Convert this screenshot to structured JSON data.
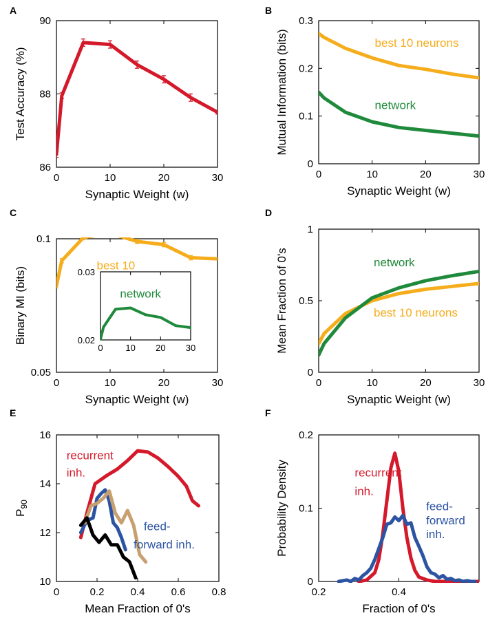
{
  "chart_data": [
    {
      "panel": "A",
      "type": "line",
      "xlabel": "Synaptic Weight (w)",
      "ylabel": "Test Accuracy (%)",
      "xlim": [
        0,
        30
      ],
      "ylim": [
        86,
        90
      ],
      "xticks": [
        0,
        10,
        20,
        30
      ],
      "yticks": [
        86,
        88,
        90
      ],
      "series": [
        {
          "name": "test accuracy",
          "color": "#d4192b",
          "x": [
            0,
            1,
            5,
            10,
            15,
            20,
            25,
            30
          ],
          "y": [
            86.35,
            87.95,
            89.4,
            89.35,
            88.8,
            88.4,
            87.9,
            87.5
          ],
          "err": [
            0.08,
            0.08,
            0.1,
            0.1,
            0.1,
            0.1,
            0.1,
            0.05
          ]
        }
      ],
      "annotations": []
    },
    {
      "panel": "B",
      "type": "line",
      "xlabel": "Synaptic Weight (w)",
      "ylabel": "Mutual Information (bits)",
      "xlim": [
        0,
        30
      ],
      "ylim": [
        0,
        0.3
      ],
      "xticks": [
        0,
        10,
        20,
        30
      ],
      "yticks": [
        0,
        0.1,
        0.2,
        0.3
      ],
      "series": [
        {
          "name": "best 10 neurons",
          "color": "#f5ad1c",
          "x": [
            0,
            1,
            5,
            10,
            15,
            20,
            25,
            30
          ],
          "y": [
            0.273,
            0.265,
            0.242,
            0.222,
            0.206,
            0.198,
            0.188,
            0.18
          ]
        },
        {
          "name": "network",
          "color": "#1f8a3b",
          "x": [
            0,
            1,
            5,
            10,
            15,
            20,
            25,
            30
          ],
          "y": [
            0.15,
            0.138,
            0.108,
            0.088,
            0.076,
            0.07,
            0.064,
            0.058
          ]
        }
      ],
      "annotations": [
        {
          "text": "best 10 neurons",
          "color": "#f5ad1c",
          "x": 10.5,
          "y": 0.245
        },
        {
          "text": "network",
          "color": "#1f8a3b",
          "x": 10.5,
          "y": 0.115
        }
      ]
    },
    {
      "panel": "C",
      "type": "line",
      "xlabel": "Synaptic Weight (w)",
      "ylabel": "Binary MI (bits)",
      "xlim": [
        0,
        30
      ],
      "ylim": [
        0.05,
        0.1
      ],
      "xticks": [
        0,
        10,
        20,
        30
      ],
      "yticks": [
        0.05,
        0.1
      ],
      "series": [
        {
          "name": "best 10",
          "color": "#f5ad1c",
          "x": [
            0,
            1,
            5,
            10,
            15,
            20,
            25,
            30
          ],
          "y": [
            0.0824,
            0.0918,
            0.1004,
            0.1021,
            0.099,
            0.0978,
            0.0929,
            0.0925
          ],
          "err": [
            0.0008,
            0.0008,
            0.0008,
            0.0008,
            0.0008,
            0.0008,
            0.0008,
            0.0
          ]
        }
      ],
      "annotations": [
        {
          "text": "best 10",
          "color": "#f5ad1c",
          "x": 7.5,
          "y": 0.0885
        }
      ],
      "inset": {
        "type": "line",
        "xlim": [
          0,
          30
        ],
        "ylim": [
          0.02,
          0.03
        ],
        "xticks": [
          0,
          10,
          20,
          30
        ],
        "yticks": [
          0.02,
          0.03
        ],
        "series": [
          {
            "name": "network",
            "color": "#1f8a3b",
            "x": [
              0,
              1,
              5,
              10,
              15,
              20,
              25,
              30
            ],
            "y": [
              0.0201,
              0.0219,
              0.0245,
              0.0247,
              0.0237,
              0.0233,
              0.0221,
              0.0218
            ]
          }
        ],
        "annotations": [
          {
            "text": "network",
            "color": "#1f8a3b",
            "x": 6.5,
            "y": 0.0262
          }
        ]
      }
    },
    {
      "panel": "D",
      "type": "line",
      "xlabel": "Synaptic Weight (w)",
      "ylabel": "Mean Fraction of 0's",
      "xlim": [
        0,
        30
      ],
      "ylim": [
        0,
        1
      ],
      "xticks": [
        0,
        10,
        20,
        30
      ],
      "yticks": [
        0,
        0.5,
        1
      ],
      "series": [
        {
          "name": "best 10 neurons",
          "color": "#f5ad1c",
          "x": [
            0,
            1,
            5,
            10,
            15,
            20,
            25,
            30
          ],
          "y": [
            0.2,
            0.27,
            0.41,
            0.5,
            0.55,
            0.58,
            0.6,
            0.62
          ]
        },
        {
          "name": "network",
          "color": "#1f8a3b",
          "x": [
            0,
            1,
            5,
            10,
            15,
            20,
            25,
            30
          ],
          "y": [
            0.12,
            0.2,
            0.38,
            0.52,
            0.59,
            0.64,
            0.675,
            0.705
          ]
        }
      ],
      "annotations": [
        {
          "text": "network",
          "color": "#1f8a3b",
          "x": 10.3,
          "y": 0.74
        },
        {
          "text": "best 10 neurons",
          "color": "#f5ad1c",
          "x": 10.3,
          "y": 0.39
        }
      ]
    },
    {
      "panel": "E",
      "type": "line",
      "xlabel": "Mean Fraction of 0's",
      "ylabel": "P90",
      "xlim": [
        0,
        0.8
      ],
      "ylim": [
        10,
        16
      ],
      "xticks": [
        0,
        0.2,
        0.4,
        0.6,
        0.8
      ],
      "yticks": [
        10,
        12,
        14,
        16
      ],
      "series": [
        {
          "name": "recurrent inh.",
          "color": "#d4192b",
          "x": [
            0.12,
            0.15,
            0.19,
            0.25,
            0.3,
            0.35,
            0.4,
            0.45,
            0.5,
            0.55,
            0.6,
            0.64,
            0.67,
            0.7
          ],
          "y": [
            11.8,
            12.8,
            14.0,
            14.35,
            14.6,
            14.95,
            15.35,
            15.3,
            15.05,
            14.7,
            14.3,
            13.9,
            13.3,
            13.1
          ]
        },
        {
          "name": "feed-forward inh.",
          "color": "#2c54a3",
          "x": [
            0.12,
            0.15,
            0.18,
            0.2,
            0.22,
            0.24,
            0.26,
            0.28,
            0.3,
            0.32,
            0.34
          ],
          "y": [
            12.0,
            12.5,
            12.6,
            13.4,
            13.6,
            13.75,
            13.3,
            12.4,
            12.2,
            11.8,
            11.3
          ]
        },
        {
          "name": "tan",
          "color": "#c8a070",
          "x": [
            0.14,
            0.17,
            0.2,
            0.23,
            0.26,
            0.29,
            0.32,
            0.35,
            0.38,
            0.41,
            0.44
          ],
          "y": [
            12.4,
            13.1,
            13.2,
            13.4,
            13.7,
            12.8,
            12.4,
            12.9,
            12.3,
            11.1,
            10.8
          ]
        },
        {
          "name": "black",
          "color": "#000000",
          "x": [
            0.12,
            0.15,
            0.18,
            0.21,
            0.24,
            0.27,
            0.3,
            0.33,
            0.36,
            0.39
          ],
          "y": [
            12.3,
            12.6,
            11.9,
            11.6,
            11.9,
            11.5,
            11.5,
            11.0,
            10.8,
            10.15
          ]
        }
      ],
      "annotations": [
        {
          "text": "recurrent",
          "color": "#d4192b",
          "x": 0.05,
          "y": 15.0
        },
        {
          "text": "inh.",
          "color": "#d4192b",
          "x": 0.05,
          "y": 14.3
        },
        {
          "text": "feed-",
          "color": "#2c54a3",
          "x": 0.43,
          "y": 12.1
        },
        {
          "text": "forward inh.",
          "color": "#2c54a3",
          "x": 0.38,
          "y": 11.35
        }
      ]
    },
    {
      "panel": "F",
      "type": "line",
      "xlabel": "Fraction of 0's",
      "ylabel": "Probability Density",
      "xlim": [
        0.2,
        0.6
      ],
      "ylim": [
        0,
        0.2
      ],
      "xticks": [
        0.2,
        0.4
      ],
      "yticks": [
        0,
        0.1,
        0.2
      ],
      "series": [
        {
          "name": "recurrent inh.",
          "color": "#d4192b",
          "x": [
            0.3,
            0.32,
            0.34,
            0.35,
            0.36,
            0.37,
            0.38,
            0.39,
            0.4,
            0.41,
            0.42,
            0.43,
            0.44,
            0.45,
            0.47,
            0.49,
            0.6
          ],
          "y": [
            0,
            0.002,
            0.012,
            0.03,
            0.065,
            0.11,
            0.155,
            0.175,
            0.15,
            0.1,
            0.06,
            0.032,
            0.015,
            0.006,
            0.002,
            0,
            0
          ]
        },
        {
          "name": "feed-forward inh.",
          "color": "#2c54a3",
          "x": [
            0.25,
            0.27,
            0.28,
            0.29,
            0.3,
            0.31,
            0.32,
            0.33,
            0.34,
            0.35,
            0.36,
            0.37,
            0.38,
            0.39,
            0.4,
            0.41,
            0.42,
            0.43,
            0.44,
            0.45,
            0.46,
            0.47,
            0.48,
            0.49,
            0.5,
            0.51,
            0.52,
            0.53,
            0.54,
            0.55,
            0.56,
            0.57,
            0.58,
            0.59
          ],
          "y": [
            0,
            0.002,
            0.0,
            0.004,
            0.002,
            0.008,
            0.012,
            0.018,
            0.03,
            0.045,
            0.06,
            0.078,
            0.08,
            0.088,
            0.083,
            0.09,
            0.078,
            0.08,
            0.06,
            0.048,
            0.035,
            0.02,
            0.012,
            0.01,
            0.005,
            0.008,
            0.003,
            0.004,
            0.001,
            0.002,
            0.0,
            0.001,
            0.0,
            0.0
          ]
        }
      ],
      "annotations": [
        {
          "text": "recurrent",
          "color": "#d4192b",
          "x": 0.29,
          "y": 0.143
        },
        {
          "text": "inh.",
          "color": "#d4192b",
          "x": 0.29,
          "y": 0.118
        },
        {
          "text": "feed-",
          "color": "#2c54a3",
          "x": 0.468,
          "y": 0.097
        },
        {
          "text": "forward",
          "color": "#2c54a3",
          "x": 0.468,
          "y": 0.078
        },
        {
          "text": "inh.",
          "color": "#2c54a3",
          "x": 0.468,
          "y": 0.059
        }
      ]
    }
  ]
}
